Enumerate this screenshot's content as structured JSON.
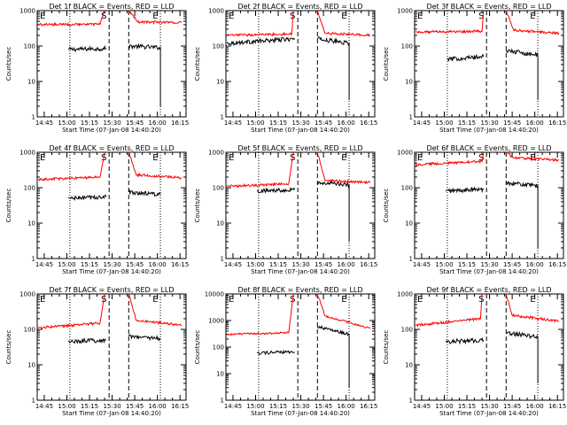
{
  "figure": {
    "background": "#ffffff",
    "colors": {
      "events": "#000000",
      "lld": "#ff0000",
      "axes": "#000000"
    }
  },
  "chart_data": [
    {
      "type": "line",
      "title": "Det 1f BLACK = Events, RED = LLD",
      "xlabel": "Start Time (07-Jan-08 14:40:20)",
      "ylabel": "Counts/sec",
      "xlim": [
        "14:40:20",
        "16:19:00"
      ],
      "ylim": [
        1,
        1000
      ],
      "yscale": "log",
      "xticks": [
        "14:45",
        "15:00",
        "15:15",
        "15:30",
        "15:45",
        "16:00",
        "16:15"
      ],
      "yticks": [
        "1",
        "10",
        "100",
        "1000"
      ],
      "markers": [
        "E",
        "S",
        "E"
      ],
      "dotted_lines": [
        "15:02",
        "16:02"
      ],
      "dashed_lines": [
        "15:28",
        "15:41"
      ],
      "series": [
        {
          "name": "Events",
          "color": "#000000",
          "segments": [
            {
              "x": [
                "15:01",
                "15:26"
              ],
              "y": [
                80,
                85
              ]
            },
            {
              "x": [
                "15:41",
                "16:02"
              ],
              "y": [
                100,
                90
              ],
              "drop_to": 2
            }
          ]
        },
        {
          "name": "LLD",
          "color": "#ff0000",
          "segments": [
            {
              "x": [
                "14:41",
                "15:22",
                "15:25"
              ],
              "y": [
                400,
                410,
                1000
              ]
            },
            {
              "x": [
                "15:41",
                "15:47",
                "16:16"
              ],
              "y": [
                1000,
                480,
                460
              ]
            }
          ]
        }
      ]
    },
    {
      "type": "line",
      "title": "Det 2f BLACK = Events, RED = LLD",
      "xlabel": "Start Time (07-Jan-08 14:40:20)",
      "ylabel": "Counts/sec",
      "xlim": [
        "14:40:20",
        "16:19:00"
      ],
      "ylim": [
        1,
        1000
      ],
      "yscale": "log",
      "xticks": [
        "14:45",
        "15:00",
        "15:15",
        "15:30",
        "15:45",
        "16:00",
        "16:15"
      ],
      "yticks": [
        "1",
        "10",
        "100",
        "1000"
      ],
      "markers": [
        "E",
        "S",
        "E"
      ],
      "dotted_lines": [
        "15:02",
        "16:02"
      ],
      "dashed_lines": [
        "15:28",
        "15:41"
      ],
      "series": [
        {
          "name": "Events",
          "color": "#000000",
          "segments": [
            {
              "x": [
                "14:41",
                "15:26"
              ],
              "y": [
                120,
                160
              ]
            },
            {
              "x": [
                "15:41",
                "16:02"
              ],
              "y": [
                160,
                120
              ],
              "drop_to": 3
            }
          ]
        },
        {
          "name": "LLD",
          "color": "#ff0000",
          "segments": [
            {
              "x": [
                "14:41",
                "15:24",
                "15:25"
              ],
              "y": [
                200,
                220,
                1000
              ]
            },
            {
              "x": [
                "15:41",
                "15:46",
                "16:16"
              ],
              "y": [
                1000,
                230,
                200
              ]
            }
          ]
        }
      ]
    },
    {
      "type": "line",
      "title": "Det 3f BLACK = Events, RED = LLD",
      "xlabel": "Start Time (07-Jan-08 14:40:20)",
      "ylabel": "Counts/sec",
      "xlim": [
        "14:40:20",
        "16:19:00"
      ],
      "ylim": [
        1,
        1000
      ],
      "yscale": "log",
      "xticks": [
        "14:45",
        "15:00",
        "15:15",
        "15:30",
        "15:45",
        "16:00",
        "16:15"
      ],
      "yticks": [
        "1",
        "10",
        "100",
        "1000"
      ],
      "markers": [
        "E",
        "S",
        "E"
      ],
      "dotted_lines": [
        "15:02",
        "16:02"
      ],
      "dashed_lines": [
        "15:28",
        "15:41"
      ],
      "series": [
        {
          "name": "Events",
          "color": "#000000",
          "segments": [
            {
              "x": [
                "15:02",
                "15:26"
              ],
              "y": [
                42,
                50
              ]
            },
            {
              "x": [
                "15:41",
                "16:02"
              ],
              "y": [
                75,
                55
              ],
              "drop_to": 3
            }
          ]
        },
        {
          "name": "LLD",
          "color": "#ff0000",
          "segments": [
            {
              "x": [
                "14:41",
                "15:25",
                "15:26"
              ],
              "y": [
                250,
                260,
                1000
              ]
            },
            {
              "x": [
                "15:41",
                "15:46",
                "16:16"
              ],
              "y": [
                1000,
                280,
                230
              ]
            }
          ]
        }
      ]
    },
    {
      "type": "line",
      "title": "Det 4f BLACK = Events, RED = LLD",
      "xlabel": "Start Time (07-Jan-08 14:40:20)",
      "ylabel": "Counts/sec",
      "xlim": [
        "14:40:20",
        "16:19:00"
      ],
      "ylim": [
        1,
        1000
      ],
      "yscale": "log",
      "xticks": [
        "14:45",
        "15:00",
        "15:15",
        "15:30",
        "15:45",
        "16:00",
        "16:15"
      ],
      "yticks": [
        "1",
        "10",
        "100",
        "1000"
      ],
      "markers": [
        "E",
        "S",
        "E"
      ],
      "dotted_lines": [
        "15:02",
        "16:02"
      ],
      "dashed_lines": [
        "15:28",
        "15:41"
      ],
      "series": [
        {
          "name": "Events",
          "color": "#000000",
          "segments": [
            {
              "x": [
                "15:01",
                "15:26"
              ],
              "y": [
                50,
                55
              ]
            },
            {
              "x": [
                "15:41",
                "16:02"
              ],
              "y": [
                75,
                65
              ]
            }
          ]
        },
        {
          "name": "LLD",
          "color": "#ff0000",
          "segments": [
            {
              "x": [
                "14:41",
                "15:22",
                "15:25"
              ],
              "y": [
                170,
                200,
                1000
              ]
            },
            {
              "x": [
                "15:41",
                "15:46",
                "16:16"
              ],
              "y": [
                1000,
                230,
                190
              ]
            }
          ]
        }
      ]
    },
    {
      "type": "line",
      "title": "Det 5f BLACK = Events, RED = LLD",
      "xlabel": "Start Time (07-Jan-08 14:40:20)",
      "ylabel": "Counts/sec",
      "xlim": [
        "14:40:20",
        "16:19:00"
      ],
      "ylim": [
        1,
        1000
      ],
      "yscale": "log",
      "xticks": [
        "14:45",
        "15:00",
        "15:15",
        "15:30",
        "15:45",
        "16:00",
        "16:15"
      ],
      "yticks": [
        "1",
        "10",
        "100",
        "1000"
      ],
      "markers": [
        "E",
        "S",
        "E"
      ],
      "dotted_lines": [
        "15:02",
        "16:02"
      ],
      "dashed_lines": [
        "15:28",
        "15:41"
      ],
      "series": [
        {
          "name": "Events",
          "color": "#000000",
          "segments": [
            {
              "x": [
                "15:01",
                "15:26"
              ],
              "y": [
                80,
                90
              ]
            },
            {
              "x": [
                "15:41",
                "16:02"
              ],
              "y": [
                140,
                120
              ],
              "drop_to": 3
            }
          ]
        },
        {
          "name": "LLD",
          "color": "#ff0000",
          "segments": [
            {
              "x": [
                "14:41",
                "15:22",
                "15:25"
              ],
              "y": [
                110,
                130,
                1000
              ]
            },
            {
              "x": [
                "15:41",
                "15:46",
                "16:16"
              ],
              "y": [
                1000,
                160,
                140
              ]
            }
          ]
        }
      ]
    },
    {
      "type": "line",
      "title": "Det 6f BLACK = Events, RED = LLD",
      "xlabel": "Start Time (07-Jan-08 14:40:20)",
      "ylabel": "Counts/sec",
      "xlim": [
        "14:40:20",
        "16:19:00"
      ],
      "ylim": [
        1,
        1000
      ],
      "yscale": "log",
      "xticks": [
        "14:45",
        "15:00",
        "15:15",
        "15:30",
        "15:45",
        "16:00",
        "16:15"
      ],
      "yticks": [
        "1",
        "10",
        "100",
        "1000"
      ],
      "markers": [
        "E",
        "S",
        "E"
      ],
      "dotted_lines": [
        "15:02",
        "16:02"
      ],
      "dashed_lines": [
        "15:28",
        "15:41"
      ],
      "series": [
        {
          "name": "Events",
          "color": "#000000",
          "segments": [
            {
              "x": [
                "15:01",
                "15:26"
              ],
              "y": [
                80,
                90
              ]
            },
            {
              "x": [
                "15:41",
                "16:02"
              ],
              "y": [
                140,
                110
              ],
              "drop_to": 2
            }
          ]
        },
        {
          "name": "LLD",
          "color": "#ff0000",
          "segments": [
            {
              "x": [
                "14:41",
                "15:25",
                "15:26"
              ],
              "y": [
                450,
                550,
                1000
              ]
            },
            {
              "x": [
                "15:41",
                "15:46",
                "16:16"
              ],
              "y": [
                1000,
                700,
                600
              ]
            }
          ]
        }
      ]
    },
    {
      "type": "line",
      "title": "Det 7f BLACK = Events, RED = LLD",
      "xlabel": "Start Time (07-Jan-08 14:40:20)",
      "ylabel": "Counts/sec",
      "xlim": [
        "14:40:20",
        "16:19:00"
      ],
      "ylim": [
        1,
        1000
      ],
      "yscale": "log",
      "xticks": [
        "14:45",
        "15:00",
        "15:15",
        "15:30",
        "15:45",
        "16:00",
        "16:15"
      ],
      "yticks": [
        "1",
        "10",
        "100",
        "1000"
      ],
      "markers": [
        "E",
        "S",
        "E"
      ],
      "dotted_lines": [
        "15:02",
        "16:02"
      ],
      "dashed_lines": [
        "15:28",
        "15:41"
      ],
      "series": [
        {
          "name": "Events",
          "color": "#000000",
          "segments": [
            {
              "x": [
                "15:01",
                "15:26"
              ],
              "y": [
                45,
                50
              ]
            },
            {
              "x": [
                "15:41",
                "16:02"
              ],
              "y": [
                65,
                55
              ]
            }
          ]
        },
        {
          "name": "LLD",
          "color": "#ff0000",
          "segments": [
            {
              "x": [
                "14:41",
                "15:22",
                "15:25"
              ],
              "y": [
                110,
                150,
                1000
              ]
            },
            {
              "x": [
                "15:41",
                "15:46",
                "16:16"
              ],
              "y": [
                1000,
                180,
                130
              ]
            }
          ]
        }
      ]
    },
    {
      "type": "line",
      "title": "Det 8f BLACK = Events, RED = LLD",
      "xlabel": "Start Time (07-Jan-08 14:40:20)",
      "ylabel": "Counts/sec",
      "xlim": [
        "14:40:20",
        "16:19:00"
      ],
      "ylim": [
        1,
        10000
      ],
      "yscale": "log",
      "xticks": [
        "14:45",
        "15:00",
        "15:15",
        "15:30",
        "15:45",
        "16:00",
        "16:15"
      ],
      "yticks": [
        "1",
        "10",
        "100",
        "1000",
        "10000"
      ],
      "markers": [
        "E",
        "S",
        "E"
      ],
      "dotted_lines": [
        "15:02",
        "16:02"
      ],
      "dashed_lines": [
        "15:28",
        "15:41"
      ],
      "series": [
        {
          "name": "Events",
          "color": "#000000",
          "segments": [
            {
              "x": [
                "15:01",
                "15:26"
              ],
              "y": [
                60,
                65
              ]
            },
            {
              "x": [
                "15:41",
                "16:02"
              ],
              "y": [
                600,
                300
              ],
              "drop_to": 3
            }
          ]
        },
        {
          "name": "LLD",
          "color": "#ff0000",
          "segments": [
            {
              "x": [
                "14:41",
                "15:22",
                "15:25"
              ],
              "y": [
                300,
                350,
                10000
              ]
            },
            {
              "x": [
                "15:41",
                "15:46",
                "16:16"
              ],
              "y": [
                10000,
                1500,
                500
              ]
            }
          ]
        }
      ]
    },
    {
      "type": "line",
      "title": "Det 9f BLACK = Events, RED = LLD",
      "xlabel": "Start Time (07-Jan-08 14:40:20)",
      "ylabel": "Counts/sec",
      "xlim": [
        "14:40:20",
        "16:19:00"
      ],
      "ylim": [
        1,
        1000
      ],
      "yscale": "log",
      "xticks": [
        "14:45",
        "15:00",
        "15:15",
        "15:30",
        "15:45",
        "16:00",
        "16:15"
      ],
      "yticks": [
        "1",
        "10",
        "100",
        "1000"
      ],
      "markers": [
        "E",
        "S",
        "E"
      ],
      "dotted_lines": [
        "15:02",
        "16:02"
      ],
      "dashed_lines": [
        "15:28",
        "15:41"
      ],
      "series": [
        {
          "name": "Events",
          "color": "#000000",
          "segments": [
            {
              "x": [
                "15:01",
                "15:26"
              ],
              "y": [
                45,
                50
              ]
            },
            {
              "x": [
                "15:41",
                "16:02"
              ],
              "y": [
                80,
                60
              ],
              "drop_to": 3
            }
          ]
        },
        {
          "name": "LLD",
          "color": "#ff0000",
          "segments": [
            {
              "x": [
                "14:41",
                "15:24",
                "15:25"
              ],
              "y": [
                130,
                200,
                1000
              ]
            },
            {
              "x": [
                "15:41",
                "15:45",
                "16:16"
              ],
              "y": [
                1000,
                250,
                170
              ]
            }
          ]
        }
      ]
    }
  ]
}
